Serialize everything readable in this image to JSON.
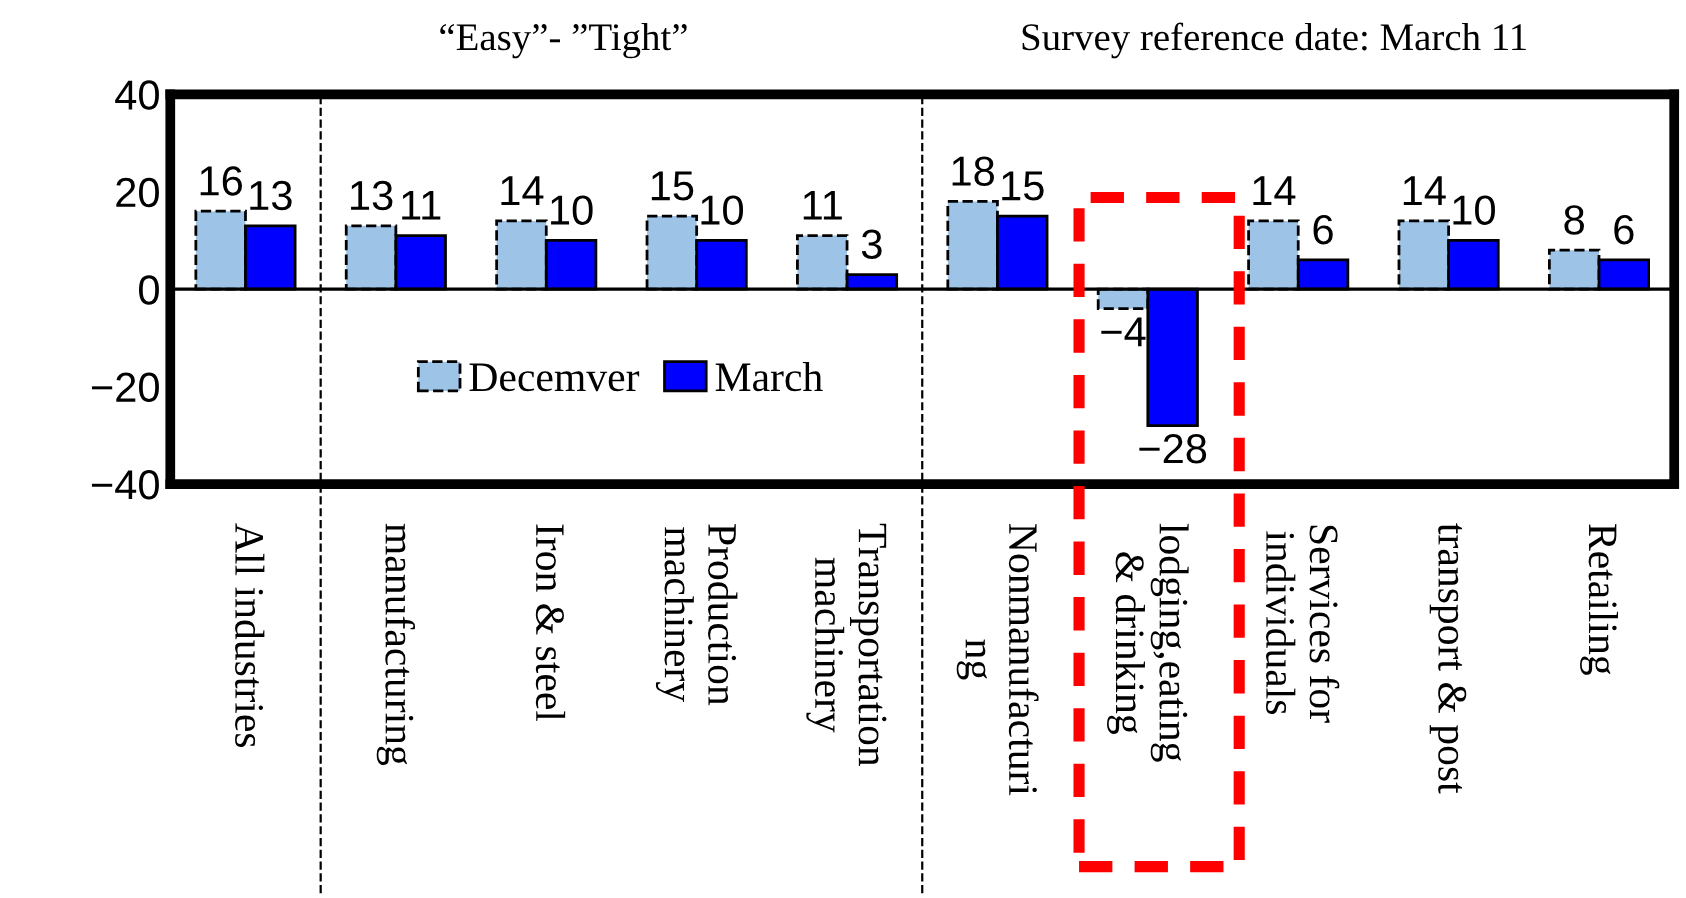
{
  "chart_data": {
    "type": "bar",
    "categories": [
      "All industries",
      "manufacturing",
      "Iron & steel",
      "Production\nmachinery",
      "Transportation\nmachinery",
      "Nonmanufacturi\nng",
      "lodging,eating\n& drinking",
      "Services for\nindividuals",
      "transport & post",
      "Retailing"
    ],
    "series": [
      {
        "name": "Decemver",
        "color": "#9dc3e6",
        "values": [
          16,
          13,
          14,
          15,
          11,
          18,
          -4,
          14,
          14,
          8
        ]
      },
      {
        "name": "March",
        "color": "#0000ff",
        "values": [
          13,
          11,
          10,
          10,
          3,
          15,
          -28,
          6,
          10,
          6
        ]
      }
    ],
    "ylim": [
      -40,
      40
    ],
    "yticks": [
      -40,
      -20,
      0,
      20,
      40
    ],
    "data_labels": true,
    "legend": "bottom left",
    "grid": false,
    "annotations": [
      "“Easy”- ”Tight”",
      "Survey reference date: March 11"
    ]
  }
}
